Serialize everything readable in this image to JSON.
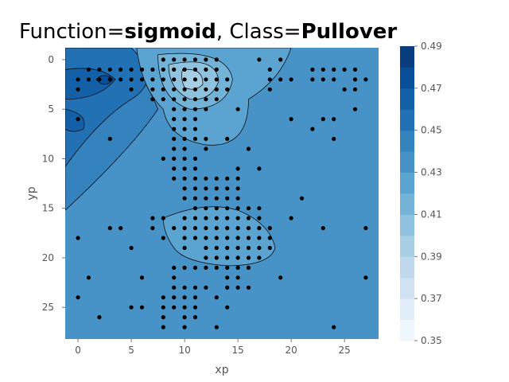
{
  "chart_data": {
    "type": "contour",
    "title": {
      "prefix": "Function=",
      "function": "sigmoid",
      "middle": ", Class=",
      "class": "Pullover"
    },
    "xlabel": "xp",
    "ylabel": "yp",
    "xlim": [
      -1.2,
      28.2
    ],
    "ylim": [
      28.2,
      -1.2
    ],
    "y_inverted": true,
    "x_ticks": [
      0,
      5,
      10,
      15,
      20,
      25
    ],
    "y_ticks": [
      0,
      5,
      10,
      15,
      20,
      25
    ],
    "grid": false,
    "colormap": "Blues",
    "colorbar": {
      "levels": [
        0.35,
        0.36,
        0.37,
        0.38,
        0.39,
        0.4,
        0.41,
        0.42,
        0.43,
        0.44,
        0.45,
        0.46,
        0.47,
        0.48,
        0.49
      ],
      "tick_labels": [
        "0.35",
        "0.37",
        "0.39",
        "0.41",
        "0.43",
        "0.45",
        "0.47",
        "0.49"
      ],
      "colors": [
        "#f0f6fd",
        "#e1edf8",
        "#d1e3f3",
        "#bfd8ed",
        "#a8cee4",
        "#8fc2de",
        "#74b3d8",
        "#5ba3d0",
        "#4792c6",
        "#3482be",
        "#2271b5",
        "#1360a8",
        "#084f99",
        "#083e80"
      ]
    },
    "regions": [
      {
        "level": 0.42,
        "shape": "upper-center blob",
        "center": [
          10.5,
          3
        ]
      },
      {
        "level": 0.41,
        "shape": "inner blob",
        "center": [
          10.5,
          2.5
        ]
      },
      {
        "level": 0.4,
        "shape": "inner blob",
        "center": [
          10.8,
          2.2
        ]
      },
      {
        "level": 0.39,
        "shape": "peak",
        "center": [
          10.8,
          2
        ]
      },
      {
        "level": 0.42,
        "shape": "lower-center blob",
        "center": [
          12.5,
          18.5
        ]
      },
      {
        "level": 0.44,
        "shape": "left wedge",
        "center": [
          2,
          5
        ]
      },
      {
        "level": 0.45,
        "shape": "left upper region",
        "center": [
          1,
          3
        ]
      },
      {
        "level": 0.46,
        "shape": "left small",
        "center": [
          0,
          5.8
        ]
      },
      {
        "level": 0.47,
        "shape": "left tiny",
        "center": [
          2.5,
          2
        ]
      }
    ],
    "points": [
      [
        8,
        0
      ],
      [
        9,
        0
      ],
      [
        10,
        0
      ],
      [
        11,
        0
      ],
      [
        12,
        0
      ],
      [
        13,
        0
      ],
      [
        17,
        0
      ],
      [
        19,
        0
      ],
      [
        1,
        1
      ],
      [
        2,
        1
      ],
      [
        3,
        1
      ],
      [
        4,
        1
      ],
      [
        5,
        1
      ],
      [
        6,
        1
      ],
      [
        7,
        1
      ],
      [
        8,
        1
      ],
      [
        9,
        1
      ],
      [
        10,
        1
      ],
      [
        11,
        1
      ],
      [
        12,
        1
      ],
      [
        13,
        1
      ],
      [
        18,
        1
      ],
      [
        22,
        1
      ],
      [
        23,
        1
      ],
      [
        24,
        1
      ],
      [
        25,
        1
      ],
      [
        26,
        1
      ],
      [
        0,
        2
      ],
      [
        1,
        2
      ],
      [
        2,
        2
      ],
      [
        3,
        2
      ],
      [
        4,
        2
      ],
      [
        5,
        2
      ],
      [
        6,
        2
      ],
      [
        7,
        2
      ],
      [
        8,
        2
      ],
      [
        9,
        2
      ],
      [
        10,
        2
      ],
      [
        11,
        2
      ],
      [
        12,
        2
      ],
      [
        13,
        2
      ],
      [
        14,
        2
      ],
      [
        18,
        2
      ],
      [
        19,
        2
      ],
      [
        20,
        2
      ],
      [
        22,
        2
      ],
      [
        23,
        2
      ],
      [
        24,
        2
      ],
      [
        26,
        2
      ],
      [
        27,
        2
      ],
      [
        0,
        3
      ],
      [
        5,
        3
      ],
      [
        7,
        3
      ],
      [
        8,
        3
      ],
      [
        9,
        3
      ],
      [
        10,
        3
      ],
      [
        11,
        3
      ],
      [
        12,
        3
      ],
      [
        13,
        3
      ],
      [
        14,
        3
      ],
      [
        18,
        3
      ],
      [
        25,
        3
      ],
      [
        26,
        3
      ],
      [
        7,
        4
      ],
      [
        8,
        4
      ],
      [
        9,
        4
      ],
      [
        10,
        4
      ],
      [
        11,
        4
      ],
      [
        12,
        4
      ],
      [
        13,
        4
      ],
      [
        9,
        5
      ],
      [
        10,
        5
      ],
      [
        11,
        5
      ],
      [
        12,
        5
      ],
      [
        15,
        5
      ],
      [
        26,
        5
      ],
      [
        0,
        6
      ],
      [
        9,
        6
      ],
      [
        10,
        6
      ],
      [
        11,
        6
      ],
      [
        20,
        6
      ],
      [
        23,
        6
      ],
      [
        24,
        6
      ],
      [
        9,
        7
      ],
      [
        10,
        7
      ],
      [
        11,
        7
      ],
      [
        22,
        7
      ],
      [
        3,
        8
      ],
      [
        9,
        8
      ],
      [
        10,
        8
      ],
      [
        11,
        8
      ],
      [
        12,
        8
      ],
      [
        14,
        8
      ],
      [
        24,
        8
      ],
      [
        9,
        9
      ],
      [
        10,
        9
      ],
      [
        12,
        9
      ],
      [
        16,
        9
      ],
      [
        8,
        10
      ],
      [
        9,
        10
      ],
      [
        10,
        10
      ],
      [
        11,
        10
      ],
      [
        9,
        11
      ],
      [
        10,
        11
      ],
      [
        11,
        11
      ],
      [
        15,
        11
      ],
      [
        17,
        11
      ],
      [
        9,
        12
      ],
      [
        10,
        12
      ],
      [
        11,
        12
      ],
      [
        12,
        12
      ],
      [
        13,
        12
      ],
      [
        14,
        12
      ],
      [
        15,
        12
      ],
      [
        10,
        13
      ],
      [
        11,
        13
      ],
      [
        12,
        13
      ],
      [
        13,
        13
      ],
      [
        14,
        13
      ],
      [
        15,
        13
      ],
      [
        10,
        14
      ],
      [
        11,
        14
      ],
      [
        12,
        14
      ],
      [
        13,
        14
      ],
      [
        14,
        14
      ],
      [
        15,
        14
      ],
      [
        21,
        14
      ],
      [
        11,
        15
      ],
      [
        12,
        15
      ],
      [
        13,
        15
      ],
      [
        14,
        15
      ],
      [
        15,
        15
      ],
      [
        16,
        15
      ],
      [
        17,
        15
      ],
      [
        7,
        16
      ],
      [
        8,
        16
      ],
      [
        10,
        16
      ],
      [
        11,
        16
      ],
      [
        12,
        16
      ],
      [
        13,
        16
      ],
      [
        14,
        16
      ],
      [
        15,
        16
      ],
      [
        16,
        16
      ],
      [
        17,
        16
      ],
      [
        20,
        16
      ],
      [
        3,
        17
      ],
      [
        4,
        17
      ],
      [
        7,
        17
      ],
      [
        9,
        17
      ],
      [
        10,
        17
      ],
      [
        11,
        17
      ],
      [
        12,
        17
      ],
      [
        13,
        17
      ],
      [
        14,
        17
      ],
      [
        15,
        17
      ],
      [
        16,
        17
      ],
      [
        17,
        17
      ],
      [
        18,
        17
      ],
      [
        23,
        17
      ],
      [
        27,
        17
      ],
      [
        0,
        18
      ],
      [
        8,
        18
      ],
      [
        10,
        18
      ],
      [
        11,
        18
      ],
      [
        12,
        18
      ],
      [
        13,
        18
      ],
      [
        14,
        18
      ],
      [
        15,
        18
      ],
      [
        16,
        18
      ],
      [
        17,
        18
      ],
      [
        18,
        18
      ],
      [
        5,
        19
      ],
      [
        10,
        19
      ],
      [
        12,
        19
      ],
      [
        13,
        19
      ],
      [
        14,
        19
      ],
      [
        15,
        19
      ],
      [
        16,
        19
      ],
      [
        17,
        19
      ],
      [
        18,
        19
      ],
      [
        12,
        20
      ],
      [
        13,
        20
      ],
      [
        14,
        20
      ],
      [
        15,
        20
      ],
      [
        16,
        20
      ],
      [
        17,
        20
      ],
      [
        9,
        21
      ],
      [
        10,
        21
      ],
      [
        11,
        21
      ],
      [
        12,
        21
      ],
      [
        13,
        21
      ],
      [
        14,
        21
      ],
      [
        15,
        21
      ],
      [
        16,
        21
      ],
      [
        1,
        22
      ],
      [
        6,
        22
      ],
      [
        9,
        22
      ],
      [
        14,
        22
      ],
      [
        15,
        22
      ],
      [
        19,
        22
      ],
      [
        27,
        22
      ],
      [
        9,
        23
      ],
      [
        10,
        23
      ],
      [
        11,
        23
      ],
      [
        12,
        23
      ],
      [
        14,
        23
      ],
      [
        15,
        23
      ],
      [
        16,
        23
      ],
      [
        0,
        24
      ],
      [
        8,
        24
      ],
      [
        9,
        24
      ],
      [
        10,
        24
      ],
      [
        11,
        24
      ],
      [
        13,
        24
      ],
      [
        5,
        25
      ],
      [
        6,
        25
      ],
      [
        8,
        25
      ],
      [
        9,
        25
      ],
      [
        10,
        25
      ],
      [
        11,
        25
      ],
      [
        14,
        25
      ],
      [
        2,
        26
      ],
      [
        8,
        26
      ],
      [
        10,
        26
      ],
      [
        11,
        26
      ],
      [
        8,
        27
      ],
      [
        10,
        27
      ],
      [
        13,
        27
      ],
      [
        24,
        27
      ]
    ]
  }
}
